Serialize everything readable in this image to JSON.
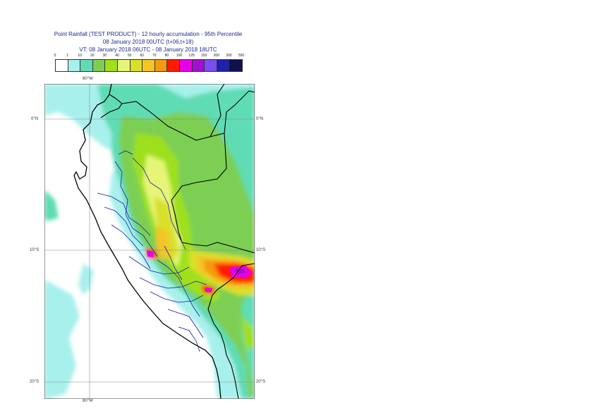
{
  "title": {
    "line1": "Point Rainfall (TEST PRODUCT) - 12 hourly accumulation - 95th Percentile",
    "line2": "08 January 2018 00UTC (t+06,t+18)",
    "line3": "VT: 08 January 2018 06UTC - 08 January 2018 18UTC"
  },
  "legend": {
    "thresholds": [
      "0",
      "1",
      "10",
      "20",
      "30",
      "40",
      "50",
      "60",
      "70",
      "80",
      "100",
      "125",
      "150",
      "200",
      "300",
      "500"
    ],
    "colors": [
      "#ffffff",
      "#a8f0ec",
      "#5fdcb4",
      "#7ccf52",
      "#9fe01a",
      "#e6f577",
      "#d8e02a",
      "#f5c526",
      "#f59a10",
      "#ff1a00",
      "#e600e6",
      "#a30fd1",
      "#7a4ef2",
      "#1f1fb0",
      "#10104f"
    ]
  },
  "map": {
    "lon_labels": {
      "top": "80°W",
      "bottom": "80°W"
    },
    "lat_labels": [
      {
        "left": "0°N",
        "right": "0°N"
      },
      {
        "left": "10°S",
        "right": "10°S"
      },
      {
        "left": "20°S",
        "right": "20°S"
      }
    ]
  }
}
